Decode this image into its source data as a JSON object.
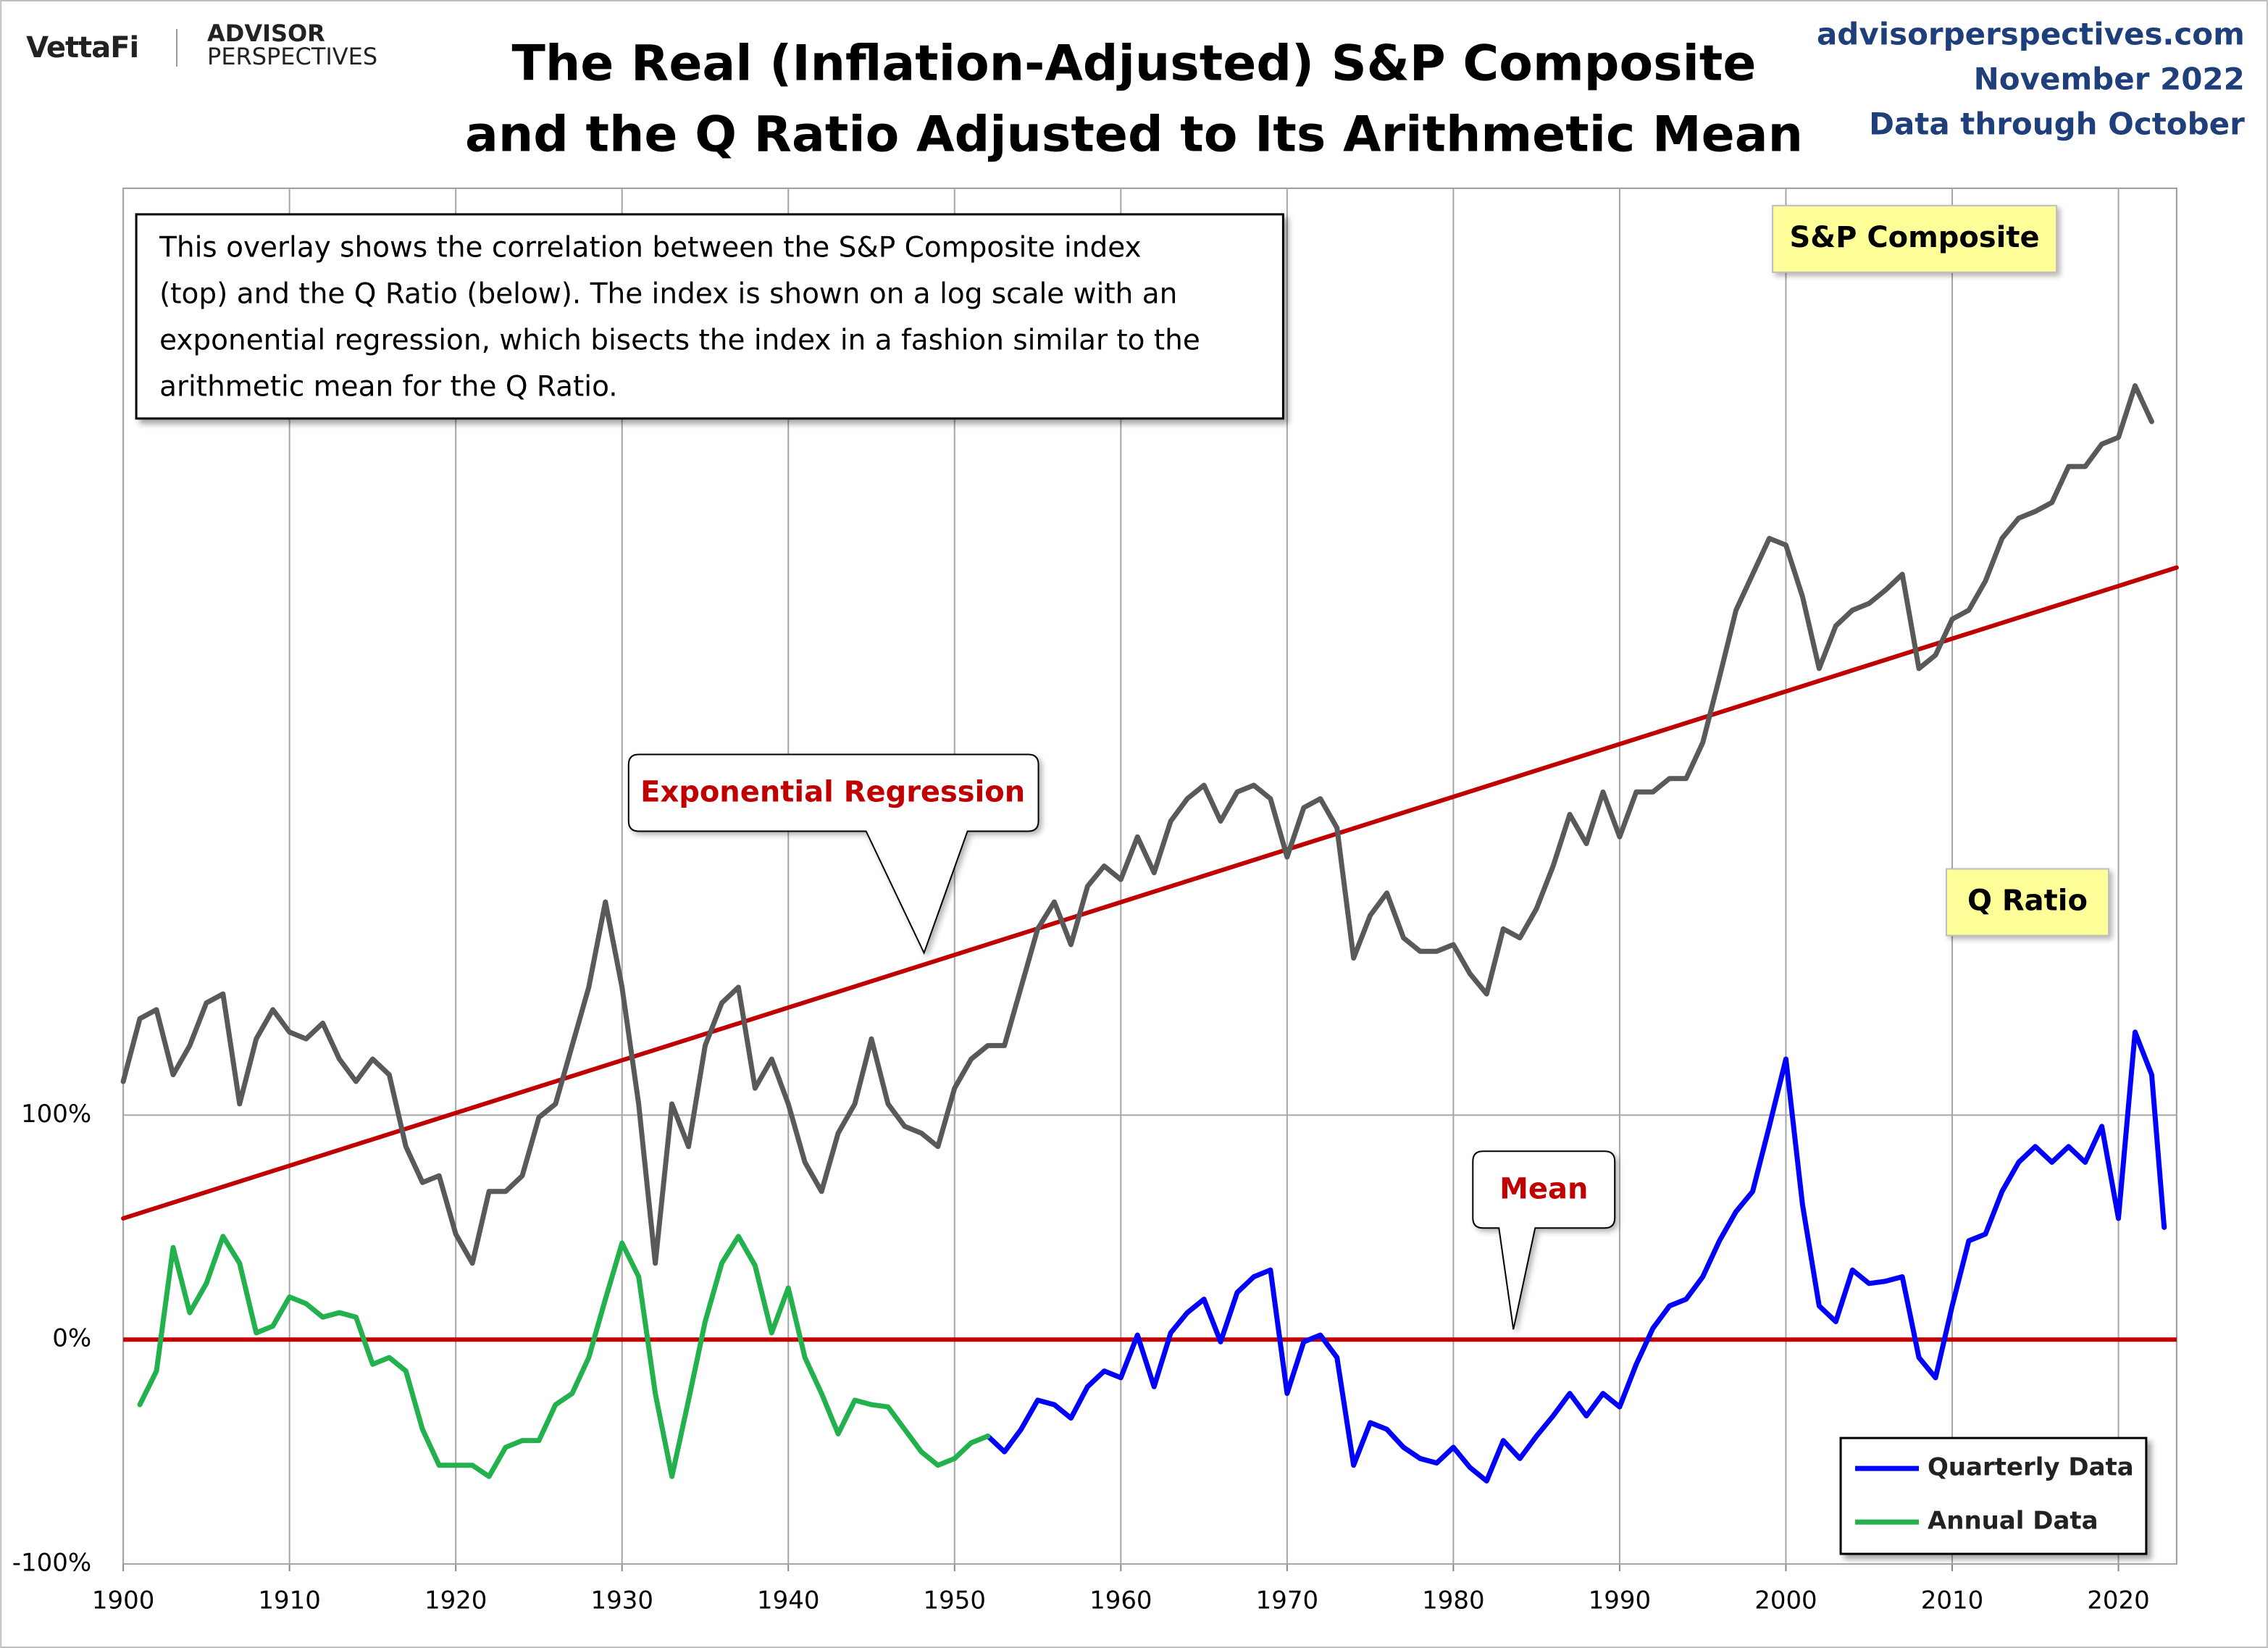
{
  "header": {
    "logo": "VettaFi",
    "brand_top": "ADVISOR",
    "brand_bottom": "PERSPECTIVES",
    "site": "advisorperspectives.com",
    "date": "November 2022",
    "data_through": "Data through October"
  },
  "chart_data": {
    "type": "line",
    "title": [
      "The Real (Inflation-Adjusted) S&P Composite",
      "and the Q Ratio Adjusted to Its Arithmetic Mean"
    ],
    "description": [
      "This overlay shows the correlation between the S&P Composite index",
      "(top) and the Q Ratio (below). The index is shown on a log scale with an",
      "exponential regression, which bisects the index in a fashion similar to the",
      "arithmetic mean for the Q Ratio."
    ],
    "annotations": {
      "regression": "Exponential Regression",
      "mean": "Mean",
      "sp_label": "S&P Composite",
      "q_label": "Q Ratio"
    },
    "xlim": [
      1900,
      2023.5
    ],
    "xticks": [
      1900,
      1910,
      1920,
      1930,
      1940,
      1950,
      1960,
      1970,
      1980,
      1990,
      2000,
      2010,
      2020
    ],
    "ylim": [
      -100,
      513
    ],
    "yticks": [
      {
        "value": -100,
        "label": "-100%"
      },
      {
        "value": 0,
        "label": "0%"
      },
      {
        "value": 100,
        "label": "100%"
      }
    ],
    "grid": true,
    "mean_line": {
      "value": 0,
      "color": "#c00000"
    },
    "regression": {
      "color": "#c00000",
      "x": [
        1900,
        2023.5
      ],
      "values": [
        54,
        344
      ]
    },
    "sp_composite": {
      "color": "#595959",
      "x": [
        1900,
        1901,
        1902,
        1903,
        1904,
        1905,
        1906,
        1907,
        1908,
        1909,
        1910,
        1911,
        1912,
        1913,
        1914,
        1915,
        1916,
        1917,
        1918,
        1919,
        1920,
        1921,
        1922,
        1923,
        1924,
        1925,
        1926,
        1927,
        1928,
        1929,
        1930,
        1931,
        1932,
        1933,
        1934,
        1935,
        1936,
        1937,
        1938,
        1939,
        1940,
        1941,
        1942,
        1943,
        1944,
        1945,
        1946,
        1947,
        1948,
        1949,
        1950,
        1951,
        1952,
        1953,
        1954,
        1955,
        1956,
        1957,
        1958,
        1959,
        1960,
        1961,
        1962,
        1963,
        1964,
        1965,
        1966,
        1967,
        1968,
        1969,
        1970,
        1971,
        1972,
        1973,
        1974,
        1975,
        1976,
        1977,
        1978,
        1979,
        1980,
        1981,
        1982,
        1983,
        1984,
        1985,
        1986,
        1987,
        1988,
        1989,
        1990,
        1991,
        1992,
        1993,
        1994,
        1995,
        1996,
        1997,
        1998,
        1999,
        2000,
        2001,
        2002,
        2003,
        2004,
        2005,
        2006,
        2007,
        2008,
        2009,
        2010,
        2011,
        2012,
        2013,
        2014,
        2015,
        2016,
        2017,
        2018,
        2019,
        2020,
        2021,
        2022
      ],
      "values": [
        115,
        143,
        147,
        118,
        131,
        150,
        154,
        105,
        134,
        147,
        137,
        134,
        141,
        125,
        115,
        125,
        118,
        86,
        70,
        73,
        47,
        34,
        66,
        66,
        73,
        99,
        105,
        131,
        157,
        195,
        157,
        105,
        34,
        105,
        86,
        131,
        150,
        157,
        112,
        125,
        105,
        79,
        66,
        92,
        105,
        134,
        105,
        95,
        92,
        86,
        112,
        125,
        131,
        131,
        157,
        183,
        195,
        176,
        202,
        211,
        205,
        224,
        208,
        231,
        241,
        247,
        231,
        244,
        247,
        241,
        215,
        237,
        241,
        228,
        170,
        189,
        199,
        179,
        173,
        173,
        176,
        163,
        154,
        183,
        179,
        192,
        211,
        234,
        221,
        244,
        224,
        244,
        244,
        250,
        250,
        266,
        295,
        325,
        341,
        357,
        354,
        331,
        299,
        318,
        325,
        328,
        334,
        341,
        299,
        305,
        321,
        325,
        338,
        357,
        366,
        369,
        373,
        389,
        389,
        399,
        402,
        425,
        409
      ]
    },
    "legend_position": "lower right",
    "series": [
      {
        "name": "Quarterly Data",
        "color": "#0000ff",
        "x": [
          1952,
          1953,
          1954,
          1955,
          1956,
          1957,
          1958,
          1959,
          1960,
          1961,
          1962,
          1963,
          1964,
          1965,
          1966,
          1967,
          1968,
          1969,
          1970,
          1971,
          1972,
          1973,
          1974,
          1975,
          1976,
          1977,
          1978,
          1979,
          1980,
          1981,
          1982,
          1983,
          1984,
          1985,
          1986,
          1987,
          1988,
          1989,
          1990,
          1991,
          1992,
          1993,
          1994,
          1995,
          1996,
          1997,
          1998,
          1999,
          2000,
          2001,
          2002,
          2003,
          2004,
          2005,
          2006,
          2007,
          2008,
          2009,
          2010,
          2011,
          2012,
          2013,
          2014,
          2015,
          2016,
          2017,
          2018,
          2019,
          2020,
          2021,
          2022,
          2022.75
        ],
        "values": [
          -43,
          -50,
          -40,
          -27,
          -29,
          -35,
          -21,
          -14,
          -17,
          2,
          -21,
          3,
          12,
          18,
          -1,
          21,
          28,
          31,
          -24,
          -1,
          2,
          -8,
          -56,
          -37,
          -40,
          -48,
          -53,
          -55,
          -48,
          -57,
          -63,
          -45,
          -53,
          -43,
          -34,
          -24,
          -34,
          -24,
          -30,
          -11,
          5,
          15,
          18,
          28,
          44,
          57,
          66,
          95,
          125,
          60,
          15,
          8,
          31,
          25,
          26,
          28,
          -8,
          -17,
          15,
          44,
          47,
          66,
          79,
          86,
          79,
          86,
          79,
          95,
          54,
          137,
          118,
          50
        ]
      },
      {
        "name": "Annual Data",
        "color": "#22b14c",
        "x": [
          1901,
          1902,
          1903,
          1904,
          1905,
          1906,
          1907,
          1908,
          1909,
          1910,
          1911,
          1912,
          1913,
          1914,
          1915,
          1916,
          1917,
          1918,
          1919,
          1920,
          1921,
          1922,
          1923,
          1924,
          1925,
          1926,
          1927,
          1928,
          1929,
          1930,
          1931,
          1932,
          1933,
          1934,
          1935,
          1936,
          1937,
          1938,
          1939,
          1940,
          1941,
          1942,
          1943,
          1944,
          1945,
          1946,
          1947,
          1948,
          1949,
          1950,
          1951,
          1952
        ],
        "values": [
          -29,
          -14,
          41,
          12,
          25,
          46,
          34,
          3,
          6,
          19,
          16,
          10,
          12,
          10,
          -11,
          -8,
          -14,
          -40,
          -56,
          -56,
          -56,
          -61,
          -48,
          -45,
          -45,
          -29,
          -24,
          -8,
          18,
          43,
          28,
          -24,
          -61,
          -27,
          8,
          34,
          46,
          33,
          3,
          23,
          -8,
          -24,
          -42,
          -27,
          -29,
          -30,
          -40,
          -50,
          -56,
          -53,
          -46,
          -43
        ]
      }
    ]
  }
}
